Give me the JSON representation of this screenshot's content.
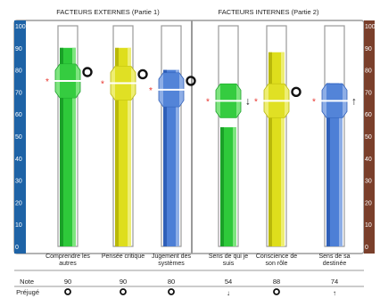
{
  "chart_data": {
    "type": "bar",
    "groups": [
      {
        "title": "FACTEURS EXTERNES (Partie 1)"
      },
      {
        "title": "FACTEURS INTERNES (Partie 2)"
      }
    ],
    "yticks": [
      0,
      10,
      20,
      30,
      40,
      50,
      60,
      70,
      80,
      90,
      100
    ],
    "ylim": [
      0,
      100
    ],
    "row_labels": {
      "note": "Note",
      "bias": "Préjugé"
    },
    "colors": {
      "left_scale": "#1e63a6",
      "right_scale": "#7a3f2b",
      "star": "#e8322b",
      "frame": "#9a9a9a"
    },
    "bars": [
      {
        "label_lines": [
          "Comprendre les",
          "autres"
        ],
        "value": 90,
        "note": "90",
        "marker": 75,
        "bias": "circle",
        "bias_glyph": "",
        "main_color": "#2ec93a",
        "dark_color": "#1aa128",
        "light_color": "#7ee47f"
      },
      {
        "label_lines": [
          "Pensée critique"
        ],
        "value": 90,
        "note": "90",
        "marker": 74,
        "bias": "circle",
        "bias_glyph": "",
        "main_color": "#dede1c",
        "dark_color": "#b9b80a",
        "light_color": "#eeee73"
      },
      {
        "label_lines": [
          "Jugement des",
          "systèmes"
        ],
        "value": 80,
        "note": "80",
        "marker": 71,
        "bias": "circle",
        "bias_glyph": "",
        "main_color": "#4d7fd6",
        "dark_color": "#2f5fb8",
        "light_color": "#8eaee6"
      },
      {
        "label_lines": [
          "Sens de qui je",
          "suis"
        ],
        "value": 54,
        "note": "54",
        "marker": 66,
        "bias": "down",
        "bias_glyph": "↓",
        "main_color": "#2ec93a",
        "dark_color": "#1aa128",
        "light_color": "#7ee47f"
      },
      {
        "label_lines": [
          "Conscience de",
          "son rôle"
        ],
        "value": 88,
        "note": "88",
        "marker": 66,
        "bias": "circle",
        "bias_glyph": "",
        "main_color": "#dede1c",
        "dark_color": "#b9b80a",
        "light_color": "#eeee73"
      },
      {
        "label_lines": [
          "Sens de sa",
          "destinée"
        ],
        "value": 74,
        "note": "74",
        "marker": 66,
        "bias": "up",
        "bias_glyph": "↑",
        "main_color": "#4d7fd6",
        "dark_color": "#2f5fb8",
        "light_color": "#8eaee6"
      }
    ]
  }
}
